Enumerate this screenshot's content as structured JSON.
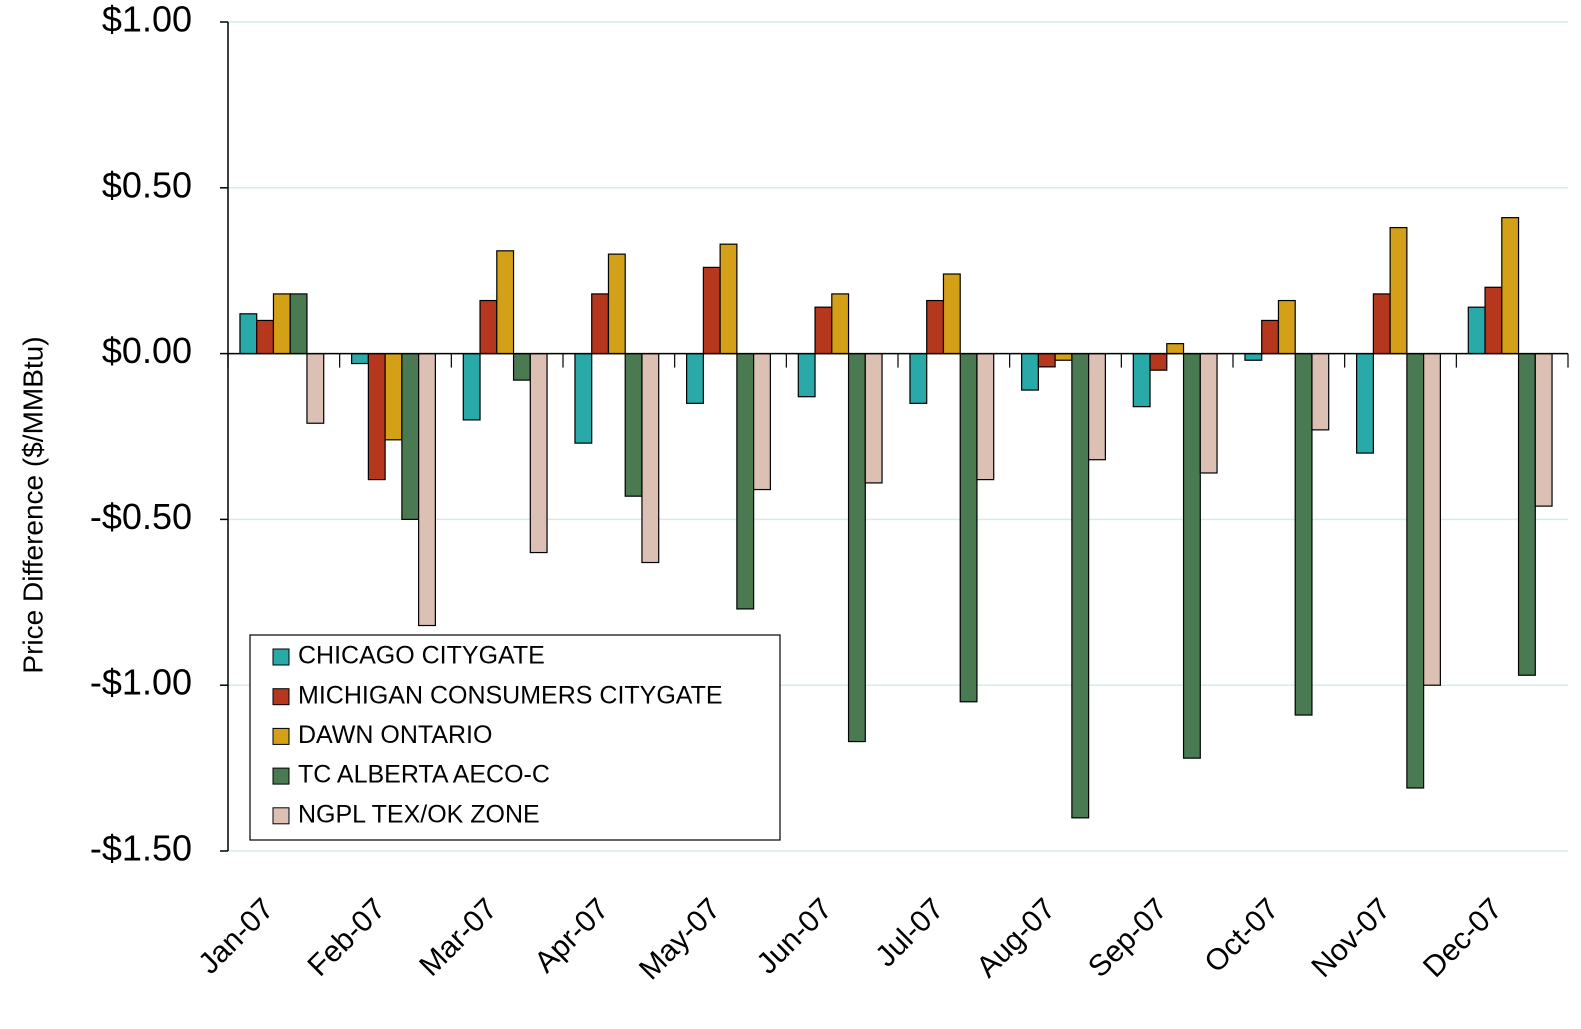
{
  "chart_data": {
    "type": "bar",
    "y_label": "Price Difference  ($/MMBtu)",
    "categories": [
      "Jan-07",
      "Feb-07",
      "Mar-07",
      "Apr-07",
      "May-07",
      "Jun-07",
      "Jul-07",
      "Aug-07",
      "Sep-07",
      "Oct-07",
      "Nov-07",
      "Dec-07"
    ],
    "series": [
      {
        "name": "CHICAGO CITYGATE",
        "color": "#2aa9a9",
        "values": [
          0.12,
          -0.03,
          -0.2,
          -0.27,
          -0.15,
          -0.13,
          -0.15,
          -0.11,
          -0.16,
          -0.02,
          -0.3,
          0.14
        ]
      },
      {
        "name": "MICHIGAN CONSUMERS CITYGATE",
        "color": "#b5371e",
        "values": [
          0.1,
          -0.38,
          0.16,
          0.18,
          0.26,
          0.14,
          0.16,
          -0.04,
          -0.05,
          0.1,
          0.18,
          0.2
        ]
      },
      {
        "name": "DAWN ONTARIO",
        "color": "#d4a017",
        "values": [
          0.18,
          -0.26,
          0.31,
          0.3,
          0.33,
          0.18,
          0.24,
          -0.02,
          0.03,
          0.16,
          0.38,
          0.41
        ]
      },
      {
        "name": "TC ALBERTA AECO-C",
        "color": "#4a7a52",
        "values": [
          0.18,
          -0.5,
          -0.08,
          -0.43,
          -0.77,
          -1.17,
          -1.05,
          -1.4,
          -1.22,
          -1.09,
          -1.31,
          -0.97
        ]
      },
      {
        "name": "NGPL TEX/OK ZONE",
        "color": "#dcc0b4",
        "values": [
          -0.21,
          -0.82,
          -0.6,
          -0.63,
          -0.41,
          -0.39,
          -0.38,
          -0.32,
          -0.36,
          -0.23,
          -1.0,
          -0.46
        ]
      }
    ],
    "ylim": [
      -1.5,
      1.0
    ],
    "yticks": [
      {
        "value": -1.5,
        "label": "-$1.50"
      },
      {
        "value": -1.0,
        "label": "-$1.00"
      },
      {
        "value": -0.5,
        "label": "-$0.50"
      },
      {
        "value": 0,
        "label": "$0.00"
      },
      {
        "value": 0.5,
        "label": "$0.50"
      },
      {
        "value": 1.0,
        "label": "$1.00"
      }
    ],
    "grid": true,
    "legend": "lower left"
  }
}
